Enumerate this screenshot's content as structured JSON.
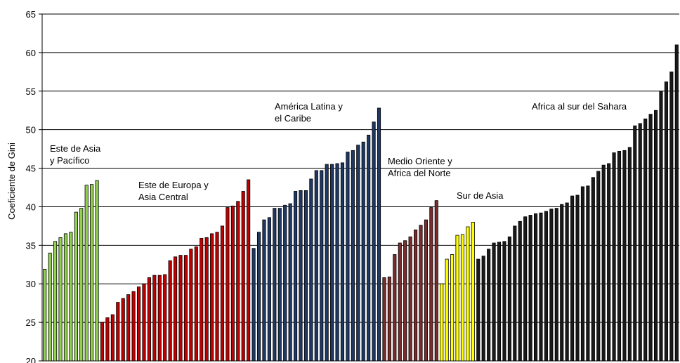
{
  "chart_data": {
    "type": "bar",
    "ylabel": "Coeficiente de Gini",
    "ylim": [
      20,
      65
    ],
    "yticks": [
      20,
      25,
      30,
      35,
      40,
      45,
      50,
      55,
      60,
      65
    ],
    "grid": true,
    "series": [
      {
        "region": "east-asia-pacific",
        "color": "#92d050",
        "values": [
          31.9,
          34.0,
          35.5,
          36.0,
          36.5,
          36.7,
          39.3,
          39.8,
          42.8,
          42.9,
          43.4
        ]
      },
      {
        "region": "europe-central-asia",
        "color": "#c00000",
        "values": [
          25.0,
          25.6,
          26.0,
          27.6,
          28.1,
          28.6,
          29.0,
          29.6,
          30.0,
          30.8,
          31.1,
          31.1,
          31.2,
          33.0,
          33.5,
          33.7,
          33.7,
          34.5,
          34.8,
          35.9,
          36.0,
          36.5,
          36.7,
          37.5,
          39.9,
          40.1,
          40.7,
          42.0,
          43.5
        ]
      },
      {
        "region": "latin-america-caribbean",
        "color": "#1f3864",
        "values": [
          34.6,
          36.7,
          38.3,
          38.6,
          39.8,
          39.8,
          40.2,
          40.4,
          42.0,
          42.1,
          42.1,
          43.6,
          44.7,
          44.7,
          45.5,
          45.5,
          45.6,
          45.7,
          47.1,
          47.3,
          48.0,
          48.4,
          49.3,
          51.0,
          52.8
        ]
      },
      {
        "region": "middle-east-north-africa",
        "color": "#7b2c2c",
        "values": [
          30.8,
          30.9,
          33.8,
          35.3,
          35.6,
          36.1,
          37.0,
          37.6,
          38.3,
          39.9,
          40.8
        ]
      },
      {
        "region": "south-asia",
        "color": "#ffff00",
        "values": [
          30.0,
          33.2,
          33.8,
          36.3,
          36.4,
          37.4,
          38.0
        ]
      },
      {
        "region": "sub-saharan-africa",
        "color": "#1a1a1a",
        "values": [
          33.2,
          33.6,
          34.5,
          35.3,
          35.4,
          35.5,
          36.1,
          37.5,
          38.1,
          38.7,
          38.9,
          39.1,
          39.2,
          39.4,
          39.7,
          39.8,
          40.3,
          40.5,
          41.4,
          41.5,
          42.6,
          42.7,
          43.8,
          44.6,
          45.4,
          45.6,
          47.0,
          47.2,
          47.3,
          47.7,
          50.5,
          50.8,
          51.4,
          52.0,
          52.5,
          55.0,
          56.2,
          57.5,
          61.0
        ]
      }
    ],
    "annotations": [
      {
        "region": "east-asia-pacific",
        "lines": [
          "Este de Asia",
          "y Pacífico"
        ]
      },
      {
        "region": "europe-central-asia",
        "lines": [
          "Este de Europa y",
          "Asia Central"
        ]
      },
      {
        "region": "latin-america-caribbean",
        "lines": [
          "América Latina y",
          "el Caribe"
        ]
      },
      {
        "region": "middle-east-north-africa",
        "lines": [
          "Medio Oriente y",
          "Africa del Norte"
        ]
      },
      {
        "region": "south-asia",
        "lines": [
          "Sur de Asia"
        ]
      },
      {
        "region": "sub-saharan-africa",
        "lines": [
          "Africa al sur del Sahara"
        ]
      }
    ]
  }
}
